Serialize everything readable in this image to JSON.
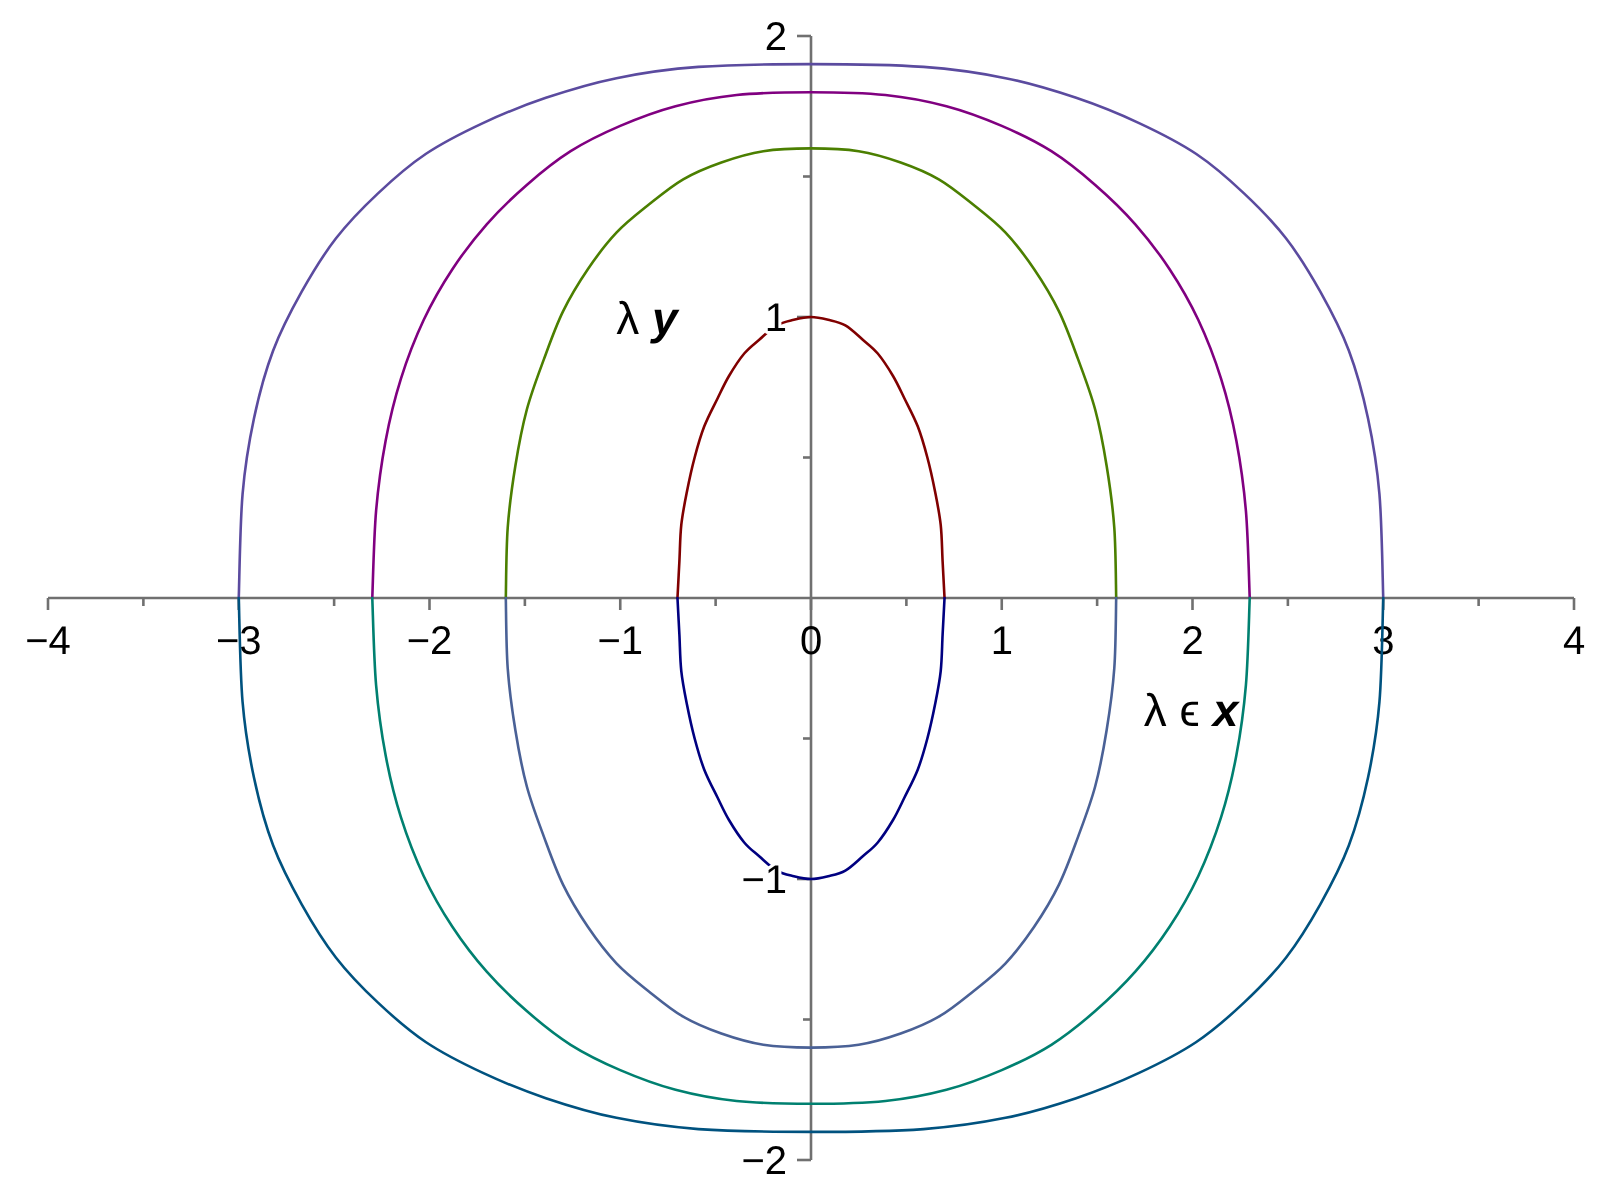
{
  "chart_data": {
    "type": "line",
    "xlabel": "λ ϵ x",
    "ylabel": "λ y",
    "xlim": [
      -4,
      4
    ],
    "ylim": [
      -2,
      2
    ],
    "xticks": [
      {
        "value": -4,
        "label": "−4"
      },
      {
        "value": -3.5,
        "label": null
      },
      {
        "value": -3,
        "label": "−3"
      },
      {
        "value": -2.5,
        "label": null
      },
      {
        "value": -2,
        "label": "−2"
      },
      {
        "value": -1.5,
        "label": null
      },
      {
        "value": -1,
        "label": "−1"
      },
      {
        "value": -0.5,
        "label": null
      },
      0,
      {
        "value": 0.5,
        "label": null
      },
      1,
      {
        "value": 1.5,
        "label": null
      },
      2,
      {
        "value": 2.5,
        "label": null
      },
      3,
      {
        "value": 3.5,
        "label": null
      },
      4
    ],
    "yticks": [
      {
        "value": -2,
        "label": "−2"
      },
      {
        "value": -1.5,
        "label": null
      },
      {
        "value": -1,
        "label": "−1"
      },
      {
        "value": -0.5,
        "label": null
      },
      {
        "value": 0.5,
        "label": null
      },
      1,
      {
        "value": 1.5,
        "label": null
      },
      2
    ],
    "marker": "none",
    "line_style": "solid",
    "series": [
      {
        "color": "#800000",
        "x": [
          -0.7,
          -0.69,
          -0.68,
          -0.65,
          -0.61,
          -0.56,
          -0.49,
          -0.43,
          -0.35,
          -0.27,
          -0.18,
          -0.09,
          0,
          0.09,
          0.18,
          0.27,
          0.35,
          0.43,
          0.49,
          0.56,
          0.61,
          0.65,
          0.68,
          0.69,
          0.7
        ],
        "values": [
          0,
          0.13,
          0.26,
          0.38,
          0.5,
          0.61,
          0.71,
          0.79,
          0.87,
          0.92,
          0.97,
          0.99,
          1,
          0.99,
          0.97,
          0.92,
          0.87,
          0.79,
          0.71,
          0.61,
          0.5,
          0.38,
          0.26,
          0.13,
          0
        ]
      },
      {
        "color": "#000080",
        "x": [
          -0.7,
          -0.69,
          -0.68,
          -0.65,
          -0.61,
          -0.56,
          -0.49,
          -0.43,
          -0.35,
          -0.27,
          -0.18,
          -0.09,
          0,
          0.09,
          0.18,
          0.27,
          0.35,
          0.43,
          0.49,
          0.56,
          0.61,
          0.65,
          0.68,
          0.69,
          0.7
        ],
        "values": [
          0,
          -0.13,
          -0.26,
          -0.38,
          -0.5,
          -0.61,
          -0.71,
          -0.79,
          -0.87,
          -0.92,
          -0.97,
          -0.99,
          -1,
          -0.99,
          -0.97,
          -0.92,
          -0.87,
          -0.79,
          -0.71,
          -0.61,
          -0.5,
          -0.38,
          -0.26,
          -0.13,
          0
        ]
      },
      {
        "color": "#4b7f00",
        "x": [
          -1.6,
          -1.59,
          -1.55,
          -1.49,
          -1.4,
          -1.3,
          -1.17,
          -1.02,
          -0.85,
          -0.67,
          -0.47,
          -0.25,
          0,
          0.25,
          0.47,
          0.67,
          0.85,
          1.02,
          1.17,
          1.3,
          1.4,
          1.49,
          1.55,
          1.59,
          1.6
        ],
        "values": [
          0,
          0.25,
          0.47,
          0.67,
          0.85,
          1.02,
          1.17,
          1.3,
          1.4,
          1.49,
          1.55,
          1.59,
          1.6,
          1.59,
          1.55,
          1.49,
          1.4,
          1.3,
          1.17,
          1.02,
          0.85,
          0.67,
          0.47,
          0.25,
          0
        ]
      },
      {
        "color": "#4a6196",
        "x": [
          -1.6,
          -1.59,
          -1.55,
          -1.49,
          -1.4,
          -1.3,
          -1.17,
          -1.02,
          -0.85,
          -0.67,
          -0.47,
          -0.25,
          0,
          0.25,
          0.47,
          0.67,
          0.85,
          1.02,
          1.17,
          1.3,
          1.4,
          1.49,
          1.55,
          1.59,
          1.6
        ],
        "values": [
          0,
          -0.25,
          -0.47,
          -0.67,
          -0.85,
          -1.02,
          -1.17,
          -1.3,
          -1.4,
          -1.49,
          -1.55,
          -1.59,
          -1.6,
          -1.59,
          -1.55,
          -1.49,
          -1.4,
          -1.3,
          -1.17,
          -1.02,
          -0.85,
          -0.67,
          -0.47,
          -0.25,
          0
        ]
      },
      {
        "color": "#800080",
        "x": [
          -2.3,
          -2.28,
          -2.23,
          -2.15,
          -2.03,
          -1.88,
          -1.7,
          -1.49,
          -1.26,
          -1,
          -0.71,
          -0.39,
          0,
          0.39,
          0.71,
          1,
          1.26,
          1.49,
          1.7,
          1.88,
          2.03,
          2.15,
          2.23,
          2.28,
          2.3
        ],
        "values": [
          0,
          0.31,
          0.56,
          0.78,
          0.99,
          1.17,
          1.33,
          1.47,
          1.59,
          1.68,
          1.75,
          1.79,
          1.8,
          1.79,
          1.75,
          1.68,
          1.59,
          1.47,
          1.33,
          1.17,
          0.99,
          0.78,
          0.56,
          0.31,
          0
        ]
      },
      {
        "color": "#008070",
        "x": [
          -2.3,
          -2.28,
          -2.23,
          -2.15,
          -2.03,
          -1.88,
          -1.7,
          -1.49,
          -1.26,
          -1,
          -0.71,
          -0.39,
          0,
          0.39,
          0.71,
          1,
          1.26,
          1.49,
          1.7,
          1.88,
          2.03,
          2.15,
          2.23,
          2.28,
          2.3
        ],
        "values": [
          0,
          -0.31,
          -0.56,
          -0.78,
          -0.99,
          -1.17,
          -1.33,
          -1.47,
          -1.59,
          -1.68,
          -1.75,
          -1.79,
          -1.8,
          -1.79,
          -1.75,
          -1.68,
          -1.59,
          -1.47,
          -1.33,
          -1.17,
          -0.99,
          -0.78,
          -0.56,
          -0.31,
          0
        ]
      },
      {
        "color": "#5b4b9f",
        "x": [
          -3,
          -2.98,
          -2.92,
          -2.82,
          -2.67,
          -2.49,
          -2.27,
          -2.02,
          -1.72,
          -1.39,
          -1.02,
          -0.59,
          0,
          0.59,
          1.02,
          1.39,
          1.72,
          2.02,
          2.27,
          2.49,
          2.67,
          2.82,
          2.92,
          2.98,
          3
        ],
        "values": [
          0,
          0.37,
          0.64,
          0.88,
          1.09,
          1.28,
          1.44,
          1.58,
          1.69,
          1.78,
          1.85,
          1.89,
          1.9,
          1.89,
          1.85,
          1.78,
          1.69,
          1.58,
          1.44,
          1.28,
          1.09,
          0.88,
          0.64,
          0.37,
          0
        ]
      },
      {
        "color": "#00527f",
        "x": [
          -3,
          -2.98,
          -2.92,
          -2.82,
          -2.67,
          -2.49,
          -2.27,
          -2.02,
          -1.72,
          -1.39,
          -1.02,
          -0.59,
          0,
          0.59,
          1.02,
          1.39,
          1.72,
          2.02,
          2.27,
          2.49,
          2.67,
          2.82,
          2.92,
          2.98,
          3
        ],
        "values": [
          0,
          -0.37,
          -0.64,
          -0.88,
          -1.09,
          -1.28,
          -1.44,
          -1.58,
          -1.69,
          -1.78,
          -1.85,
          -1.89,
          -1.9,
          -1.89,
          -1.85,
          -1.78,
          -1.69,
          -1.58,
          -1.44,
          -1.28,
          -1.09,
          -0.88,
          -0.64,
          -0.37,
          0
        ]
      }
    ]
  }
}
